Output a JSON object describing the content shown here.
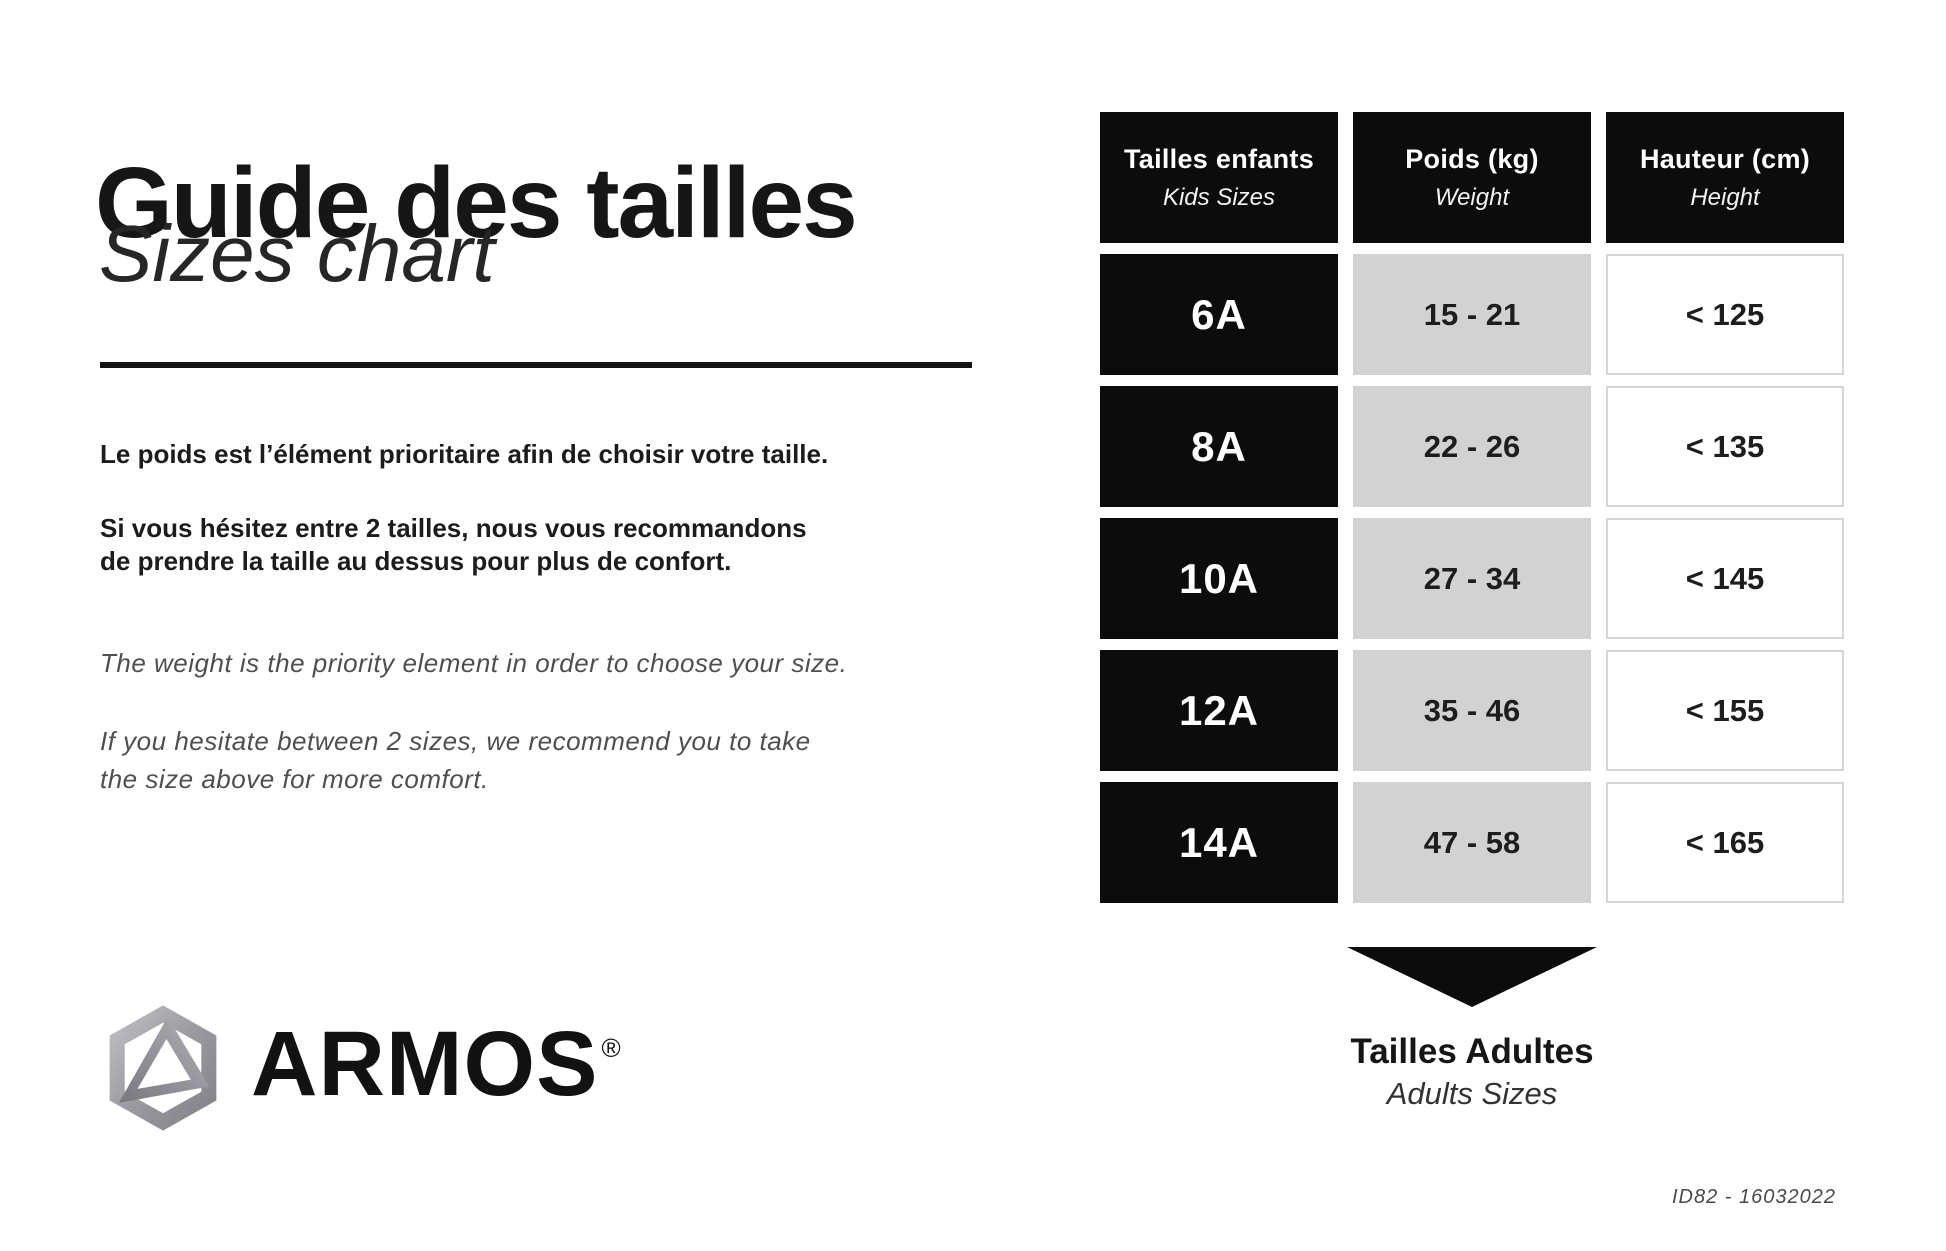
{
  "page": {
    "title": "Guide des tailles",
    "subtitle": "Sizes chart",
    "fr1": "Le poids est l’élément prioritaire afin de choisir votre taille.",
    "fr2": [
      "Si vous hésitez entre 2 tailles, nous vous recommandons",
      "de prendre la taille au dessus pour plus de confort."
    ],
    "en1": "The weight is the priority element in order to choose your size.",
    "en2": [
      "If you hesitate between 2 sizes, we recommend you to take",
      "the size above for more comfort."
    ],
    "footer_ref": "ID82 - 16032022"
  },
  "brand": {
    "wordmark": "ARMOS",
    "registered": "®",
    "icon": "hexagon-triangle-logo-icon"
  },
  "table": {
    "headers": [
      {
        "fr": "Tailles enfants",
        "en": "Kids Sizes"
      },
      {
        "fr": "Poids (kg)",
        "en": "Weight"
      },
      {
        "fr": "Hauteur (cm)",
        "en": "Height"
      }
    ],
    "rows": [
      {
        "size": "6A",
        "weight": "15 - 21",
        "height": "< 125"
      },
      {
        "size": "8A",
        "weight": "22 - 26",
        "height": "< 135"
      },
      {
        "size": "10A",
        "weight": "27 - 34",
        "height": "< 145"
      },
      {
        "size": "12A",
        "weight": "35 - 46",
        "height": "< 155"
      },
      {
        "size": "14A",
        "weight": "47 - 58",
        "height": "< 165"
      }
    ]
  },
  "adults": {
    "fr": "Tailles Adultes",
    "en": "Adults Sizes"
  },
  "colors": {
    "header_black": "#0c0c0c",
    "cell_gray": "#d2d2d2",
    "height_border_gray": "#d6d6d6",
    "text_dark": "#1c1c1c",
    "text_gray_italic": "#4f4f4f",
    "logo_gray": "#9a9aa0"
  },
  "chart_data": {
    "type": "table",
    "title": "Guide des tailles / Sizes chart",
    "columns": [
      "Tailles enfants (Kids Sizes)",
      "Poids (kg) (Weight)",
      "Hauteur (cm) (Height)"
    ],
    "rows": [
      [
        "6A",
        "15 - 21",
        "< 125"
      ],
      [
        "8A",
        "22 - 26",
        "< 135"
      ],
      [
        "10A",
        "27 - 34",
        "< 145"
      ],
      [
        "12A",
        "35 - 46",
        "< 155"
      ],
      [
        "14A",
        "47 - 58",
        "< 165"
      ]
    ],
    "note": "Below 14A range an arrow points to Tailles Adultes / Adults Sizes"
  }
}
